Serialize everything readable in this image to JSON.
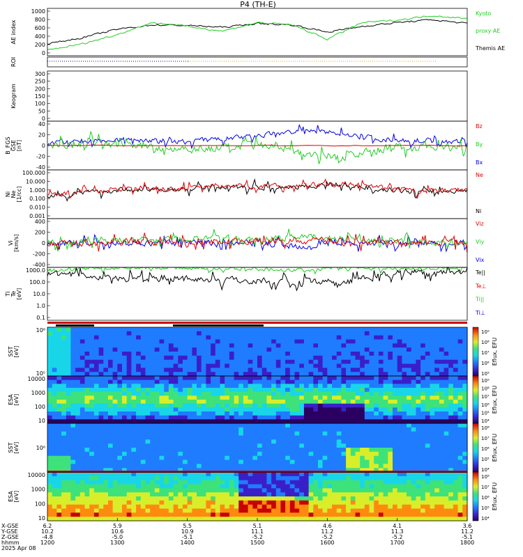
{
  "title": "P4 (TH-E)",
  "panels": [
    {
      "id": "ae",
      "ylabel": [
        "AE index"
      ],
      "yticks": [
        "1000",
        "800",
        "600",
        "400",
        "200",
        "0"
      ],
      "legend": [
        {
          "text": "Kyoto",
          "color": "#22cc22"
        },
        {
          "text": "proxy AE",
          "color": "#22cc22"
        },
        {
          "text": "Themis AE",
          "color": "#000000"
        }
      ]
    },
    {
      "id": "roi",
      "ylabel": [
        "ROI"
      ],
      "yticks": [],
      "legend": []
    },
    {
      "id": "keogram",
      "ylabel": [
        "Keogram"
      ],
      "yticks": [
        "300",
        "250",
        "200",
        "150",
        "100",
        "50",
        "0"
      ],
      "legend": []
    },
    {
      "id": "bfield",
      "ylabel": [
        "B_FGS",
        "GSE",
        "[nT]"
      ],
      "yticks": [
        "40",
        "20",
        "0",
        "-20",
        "-40"
      ],
      "legend": [
        {
          "text": "Bz",
          "color": "#dd0000"
        },
        {
          "text": "By",
          "color": "#22cc22"
        },
        {
          "text": "Bx",
          "color": "#0000dd"
        }
      ]
    },
    {
      "id": "density",
      "ylabel": [
        "Ni",
        "Ne",
        "[1/cc]"
      ],
      "yticks": [
        "100.000",
        "10.000",
        "1.000",
        "0.100",
        "0.010",
        "0.001"
      ],
      "legend": [
        {
          "text": "Ne",
          "color": "#dd0000"
        },
        {
          "text": "Ni",
          "color": "#000000"
        }
      ]
    },
    {
      "id": "velocity",
      "ylabel": [
        "Vi",
        "[km/s]"
      ],
      "yticks": [
        "400",
        "200",
        "0",
        "-200",
        "-400"
      ],
      "legend": [
        {
          "text": "Viz",
          "color": "#dd0000"
        },
        {
          "text": "Viy",
          "color": "#22cc22"
        },
        {
          "text": "Vix",
          "color": "#0000dd"
        }
      ]
    },
    {
      "id": "temperature",
      "ylabel": [
        "Ti",
        "Te",
        "[eV]"
      ],
      "yticks": [
        "1000.0",
        "100.0",
        "10.0",
        "1.0",
        "0.1"
      ],
      "legend": [
        {
          "text": "Te||",
          "color": "#000000"
        },
        {
          "text": "Te⊥",
          "color": "#dd0000"
        },
        {
          "text": "Ti||",
          "color": "#22cc22"
        },
        {
          "text": "Ti⊥",
          "color": "#0000dd"
        }
      ]
    },
    {
      "id": "sst_e",
      "ylabel": [
        "SST",
        "[eV]"
      ],
      "yticks": [
        "10⁶",
        "10⁵"
      ],
      "legend": []
    },
    {
      "id": "esa_e",
      "ylabel": [
        "ESA",
        "[eV]"
      ],
      "yticks": [
        "10000",
        "1000",
        "100",
        "10"
      ],
      "legend": []
    },
    {
      "id": "sst_i",
      "ylabel": [
        "SST",
        "[eV]"
      ],
      "yticks": [
        "10⁶"
      ],
      "legend": []
    },
    {
      "id": "esa_i",
      "ylabel": [
        "ESA",
        "[eV]"
      ],
      "yticks": [
        "10000",
        "1000",
        "100",
        "10"
      ],
      "legend": []
    }
  ],
  "colorbars": [
    {
      "label": "Eflux, EFU",
      "ticks": [
        "10⁹",
        "10⁸",
        "10⁷",
        "10⁶",
        "10⁵"
      ]
    },
    {
      "label": "Eflux, EFU",
      "ticks": [
        "10⁹",
        "10⁸",
        "10⁷",
        "10⁶",
        "10⁵",
        "10⁴"
      ]
    },
    {
      "label": "Eflux, EFU",
      "ticks": [
        "10⁸",
        "10⁷",
        "10⁶",
        "10⁵",
        "10⁴"
      ]
    },
    {
      "label": "Eflux, EFU",
      "ticks": [
        "10⁸",
        "10⁷",
        "10⁶",
        "10⁵",
        "10⁴"
      ]
    }
  ],
  "footer": {
    "row_labels": [
      "X-GSE",
      "Y-GSE",
      "Z-GSE",
      "hhmm",
      "2025 Apr 08"
    ],
    "columns": [
      {
        "x": "6.2",
        "y": "10.2",
        "z": "-4.8",
        "t": "1200"
      },
      {
        "x": "5.9",
        "y": "10.6",
        "z": "-5.0",
        "t": "1300"
      },
      {
        "x": "5.5",
        "y": "10.9",
        "z": "-5.1",
        "t": "1400"
      },
      {
        "x": "5.1",
        "y": "11.1",
        "z": "-5.2",
        "t": "1500"
      },
      {
        "x": "4.6",
        "y": "11.2",
        "z": "-5.2",
        "t": "1600"
      },
      {
        "x": "4.1",
        "y": "11.3",
        "z": "-5.2",
        "t": "1700"
      },
      {
        "x": "3.6",
        "y": "11.2",
        "z": "-5.1",
        "t": "1800"
      }
    ]
  },
  "chart_data": {
    "type": "line",
    "title": "P4 (TH-E)",
    "x_label": "hhmm",
    "x_ticks": [
      "1200",
      "1300",
      "1400",
      "1500",
      "1600",
      "1700",
      "1800"
    ],
    "x_range": [
      "1200",
      "1800"
    ],
    "date": "2025 Apr 08",
    "ae_index": {
      "ylim": [
        0,
        1000
      ],
      "t": [
        "1200",
        "1230",
        "1300",
        "1330",
        "1400",
        "1430",
        "1500",
        "1530",
        "1600",
        "1630",
        "1700",
        "1730",
        "1800"
      ],
      "series": [
        {
          "name": "Themis AE",
          "color": "#000000",
          "values": [
            250,
            380,
            560,
            650,
            640,
            600,
            680,
            650,
            500,
            620,
            700,
            760,
            680
          ]
        },
        {
          "name": "Kyoto proxy AE",
          "color": "#22cc22",
          "values": [
            120,
            250,
            450,
            700,
            620,
            520,
            700,
            650,
            350,
            700,
            750,
            850,
            780
          ]
        }
      ]
    },
    "b_field": {
      "ylim": [
        -40,
        40
      ],
      "series_names": [
        "Bz",
        "By",
        "Bx"
      ]
    },
    "density": {
      "ylim": [
        0.001,
        100
      ],
      "log": true,
      "series_names": [
        "Ne",
        "Ni"
      ]
    },
    "velocity": {
      "ylim": [
        -400,
        400
      ],
      "series_names": [
        "Viz",
        "Viy",
        "Vix"
      ]
    },
    "temperature": {
      "ylim": [
        0.1,
        1000
      ],
      "log": true,
      "series_names": [
        "Te||",
        "Te⊥",
        "Ti||",
        "Ti⊥"
      ]
    }
  }
}
